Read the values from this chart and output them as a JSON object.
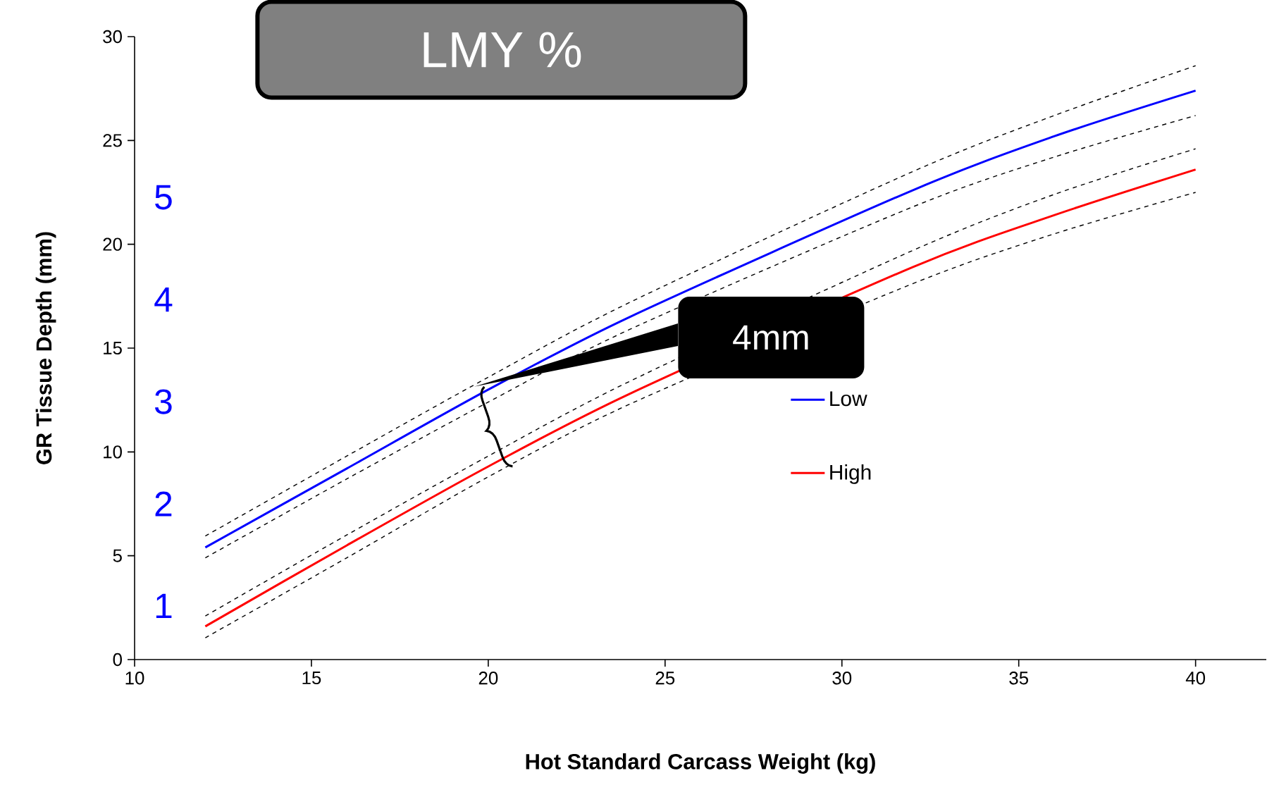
{
  "chart_data": {
    "type": "line",
    "title": "LMY %",
    "xlabel": "Hot Standard Carcass Weight (kg)",
    "ylabel": "GR Tissue Depth (mm)",
    "x": [
      12,
      16,
      20,
      24,
      32,
      36,
      40
    ],
    "series": [
      {
        "name": "Low",
        "color": "#0000ff",
        "values": [
          5.4,
          9.2,
          13.0,
          16.5,
          22.6,
          25.2,
          27.4
        ]
      },
      {
        "name": "High",
        "color": "#ff0000",
        "values": [
          1.6,
          5.5,
          9.3,
          12.8,
          18.9,
          21.4,
          23.6
        ]
      },
      {
        "color": "#000000",
        "line_style": "dashed",
        "values": [
          5.95,
          9.8,
          13.6,
          17.2,
          23.5,
          26.2,
          28.6
        ]
      },
      {
        "color": "#000000",
        "line_style": "dashed",
        "values": [
          4.9,
          8.7,
          12.4,
          15.9,
          21.8,
          24.2,
          26.2
        ]
      },
      {
        "color": "#000000",
        "line_style": "dashed",
        "values": [
          2.1,
          6.0,
          9.8,
          13.4,
          19.7,
          22.4,
          24.6
        ]
      },
      {
        "color": "#000000",
        "line_style": "dashed",
        "values": [
          1.05,
          4.9,
          8.8,
          12.3,
          18.1,
          20.5,
          22.5
        ]
      }
    ],
    "xlim": [
      10,
      42
    ],
    "ylim": [
      0,
      30
    ],
    "xticks": [
      10,
      15,
      20,
      25,
      30,
      35,
      40
    ],
    "yticks": [
      0,
      5,
      10,
      15,
      20,
      25,
      30
    ],
    "line_style": "solid",
    "legend": "right",
    "annotations": [
      "1",
      "2",
      "3",
      "4",
      "5",
      "4mm"
    ]
  }
}
